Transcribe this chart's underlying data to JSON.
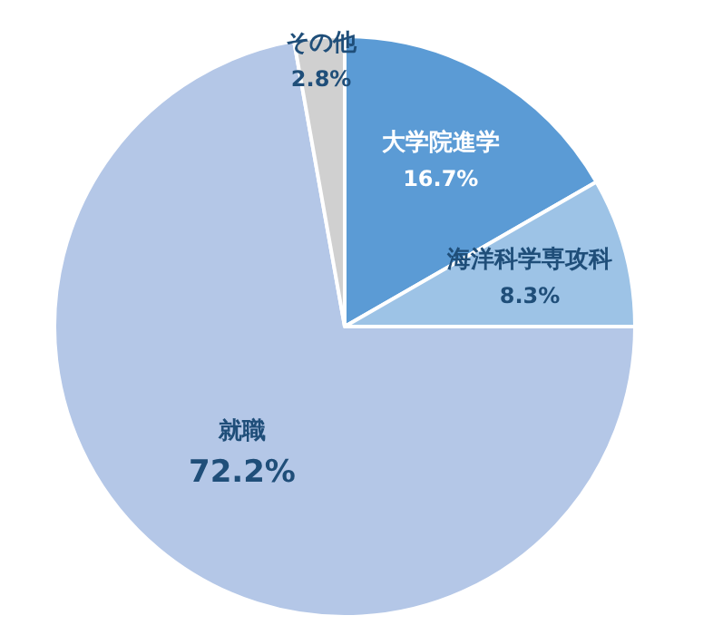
{
  "chart_data": {
    "type": "pie",
    "categories": [
      "大学院進学",
      "海洋科学専攻科",
      "就職",
      "その他"
    ],
    "values": [
      16.7,
      8.3,
      72.2,
      2.8
    ],
    "value_labels": [
      "16.7%",
      "8.3%",
      "72.2%",
      "2.8%"
    ],
    "colors": [
      "#5b9bd5",
      "#9dc3e6",
      "#b4c7e7",
      "#d0d0d0"
    ]
  }
}
